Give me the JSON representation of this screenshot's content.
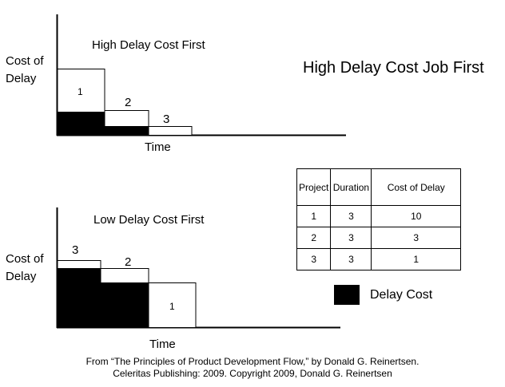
{
  "main_title": "High Delay Cost Job First",
  "top_panel": {
    "title": "High Delay Cost First",
    "ylabel_line1": "Cost of",
    "ylabel_line2": "Delay",
    "xlabel": "Time",
    "jobs": [
      {
        "label": "1",
        "duration": 3,
        "cost": 10
      },
      {
        "label": "2",
        "duration": 3,
        "cost": 3
      },
      {
        "label": "3",
        "duration": 3,
        "cost": 1
      }
    ]
  },
  "bottom_panel": {
    "title": "Low Delay Cost First",
    "ylabel_line1": "Cost of",
    "ylabel_line2": "Delay",
    "xlabel": "Time",
    "jobs": [
      {
        "label": "3",
        "duration": 3,
        "cost": 1
      },
      {
        "label": "2",
        "duration": 3,
        "cost": 3
      },
      {
        "label": "1",
        "duration": 3,
        "cost": 10
      }
    ]
  },
  "table": {
    "headers": [
      "Project",
      "Duration",
      "Cost of Delay"
    ],
    "rows": [
      [
        "1",
        "3",
        "10"
      ],
      [
        "2",
        "3",
        "3"
      ],
      [
        "3",
        "3",
        "1"
      ]
    ]
  },
  "legend": {
    "label": "Delay Cost",
    "color": "#000000"
  },
  "footer": {
    "line1": "From “The Principles of Product Development Flow,” by Donald G. Reinertsen.",
    "line2": "Celeritas Publishing: 2009. Copyright 2009, Donald G. Reinertsen"
  }
}
